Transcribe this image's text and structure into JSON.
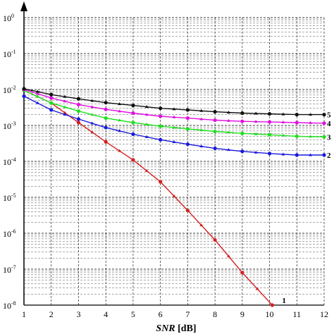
{
  "chart_data": {
    "type": "line",
    "title": "",
    "xlabel": {
      "italic": "SNR",
      "unit": " [dB]"
    },
    "ylabel": "",
    "y_scale": "log",
    "xlim": [
      1,
      12
    ],
    "ylim": [
      1e-08,
      1
    ],
    "grid": "dashed, with minor log grid",
    "x_ticks": [
      "1",
      "2",
      "3",
      "4",
      "5",
      "6",
      "7",
      "8",
      "9",
      "10",
      "11",
      "12"
    ],
    "y_ticks": [
      {
        "base": "10",
        "exp": "0",
        "value": 1
      },
      {
        "base": "10",
        "exp": "-1",
        "value": 0.1
      },
      {
        "base": "10",
        "exp": "-2",
        "value": 0.01
      },
      {
        "base": "10",
        "exp": "-3",
        "value": 0.001
      },
      {
        "base": "10",
        "exp": "-4",
        "value": 0.0001
      },
      {
        "base": "10",
        "exp": "-5",
        "value": 1e-05
      },
      {
        "base": "10",
        "exp": "-6",
        "value": 1e-06
      },
      {
        "base": "10",
        "exp": "-7",
        "value": 1e-07
      },
      {
        "base": "10",
        "exp": "-8",
        "value": 1e-08
      }
    ],
    "series": [
      {
        "name": "1",
        "color": "#d42020",
        "x": [
          1,
          2,
          3,
          4,
          5,
          6,
          7,
          8,
          9,
          10.1
        ],
        "y": [
          0.0095,
          0.0042,
          0.0012,
          0.00035,
          0.00011,
          2.7e-05,
          4.3e-06,
          6.5e-07,
          8e-08,
          1e-08
        ]
      },
      {
        "name": "2",
        "color": "#1a1adc",
        "x": [
          1,
          2,
          3,
          4,
          5,
          6,
          7,
          8,
          9,
          10,
          11,
          12
        ],
        "y": [
          0.0065,
          0.0027,
          0.0015,
          0.00087,
          0.00057,
          0.0004,
          0.0003,
          0.00023,
          0.00019,
          0.000165,
          0.00015,
          0.00015
        ]
      },
      {
        "name": "3",
        "color": "#1fe01f",
        "x": [
          1,
          2,
          3,
          4,
          5,
          6,
          7,
          8,
          9,
          10,
          11,
          12
        ],
        "y": [
          0.0095,
          0.0042,
          0.0025,
          0.0016,
          0.0012,
          0.00095,
          0.0008,
          0.00068,
          0.0006,
          0.00055,
          0.0005,
          0.00048
        ]
      },
      {
        "name": "4",
        "color": "#e010e0",
        "x": [
          1,
          2,
          3,
          4,
          5,
          6,
          7,
          8,
          9,
          10,
          11,
          12
        ],
        "y": [
          0.01,
          0.0058,
          0.0038,
          0.0028,
          0.0022,
          0.0018,
          0.0016,
          0.0014,
          0.0013,
          0.00125,
          0.0012,
          0.00115
        ]
      },
      {
        "name": "5",
        "color": "#101010",
        "x": [
          1,
          2,
          3,
          4,
          5,
          6,
          7,
          8,
          9,
          10,
          11,
          12
        ],
        "y": [
          0.0105,
          0.0072,
          0.0055,
          0.0043,
          0.0036,
          0.003,
          0.0027,
          0.0024,
          0.0022,
          0.0021,
          0.002,
          0.002
        ]
      }
    ]
  }
}
